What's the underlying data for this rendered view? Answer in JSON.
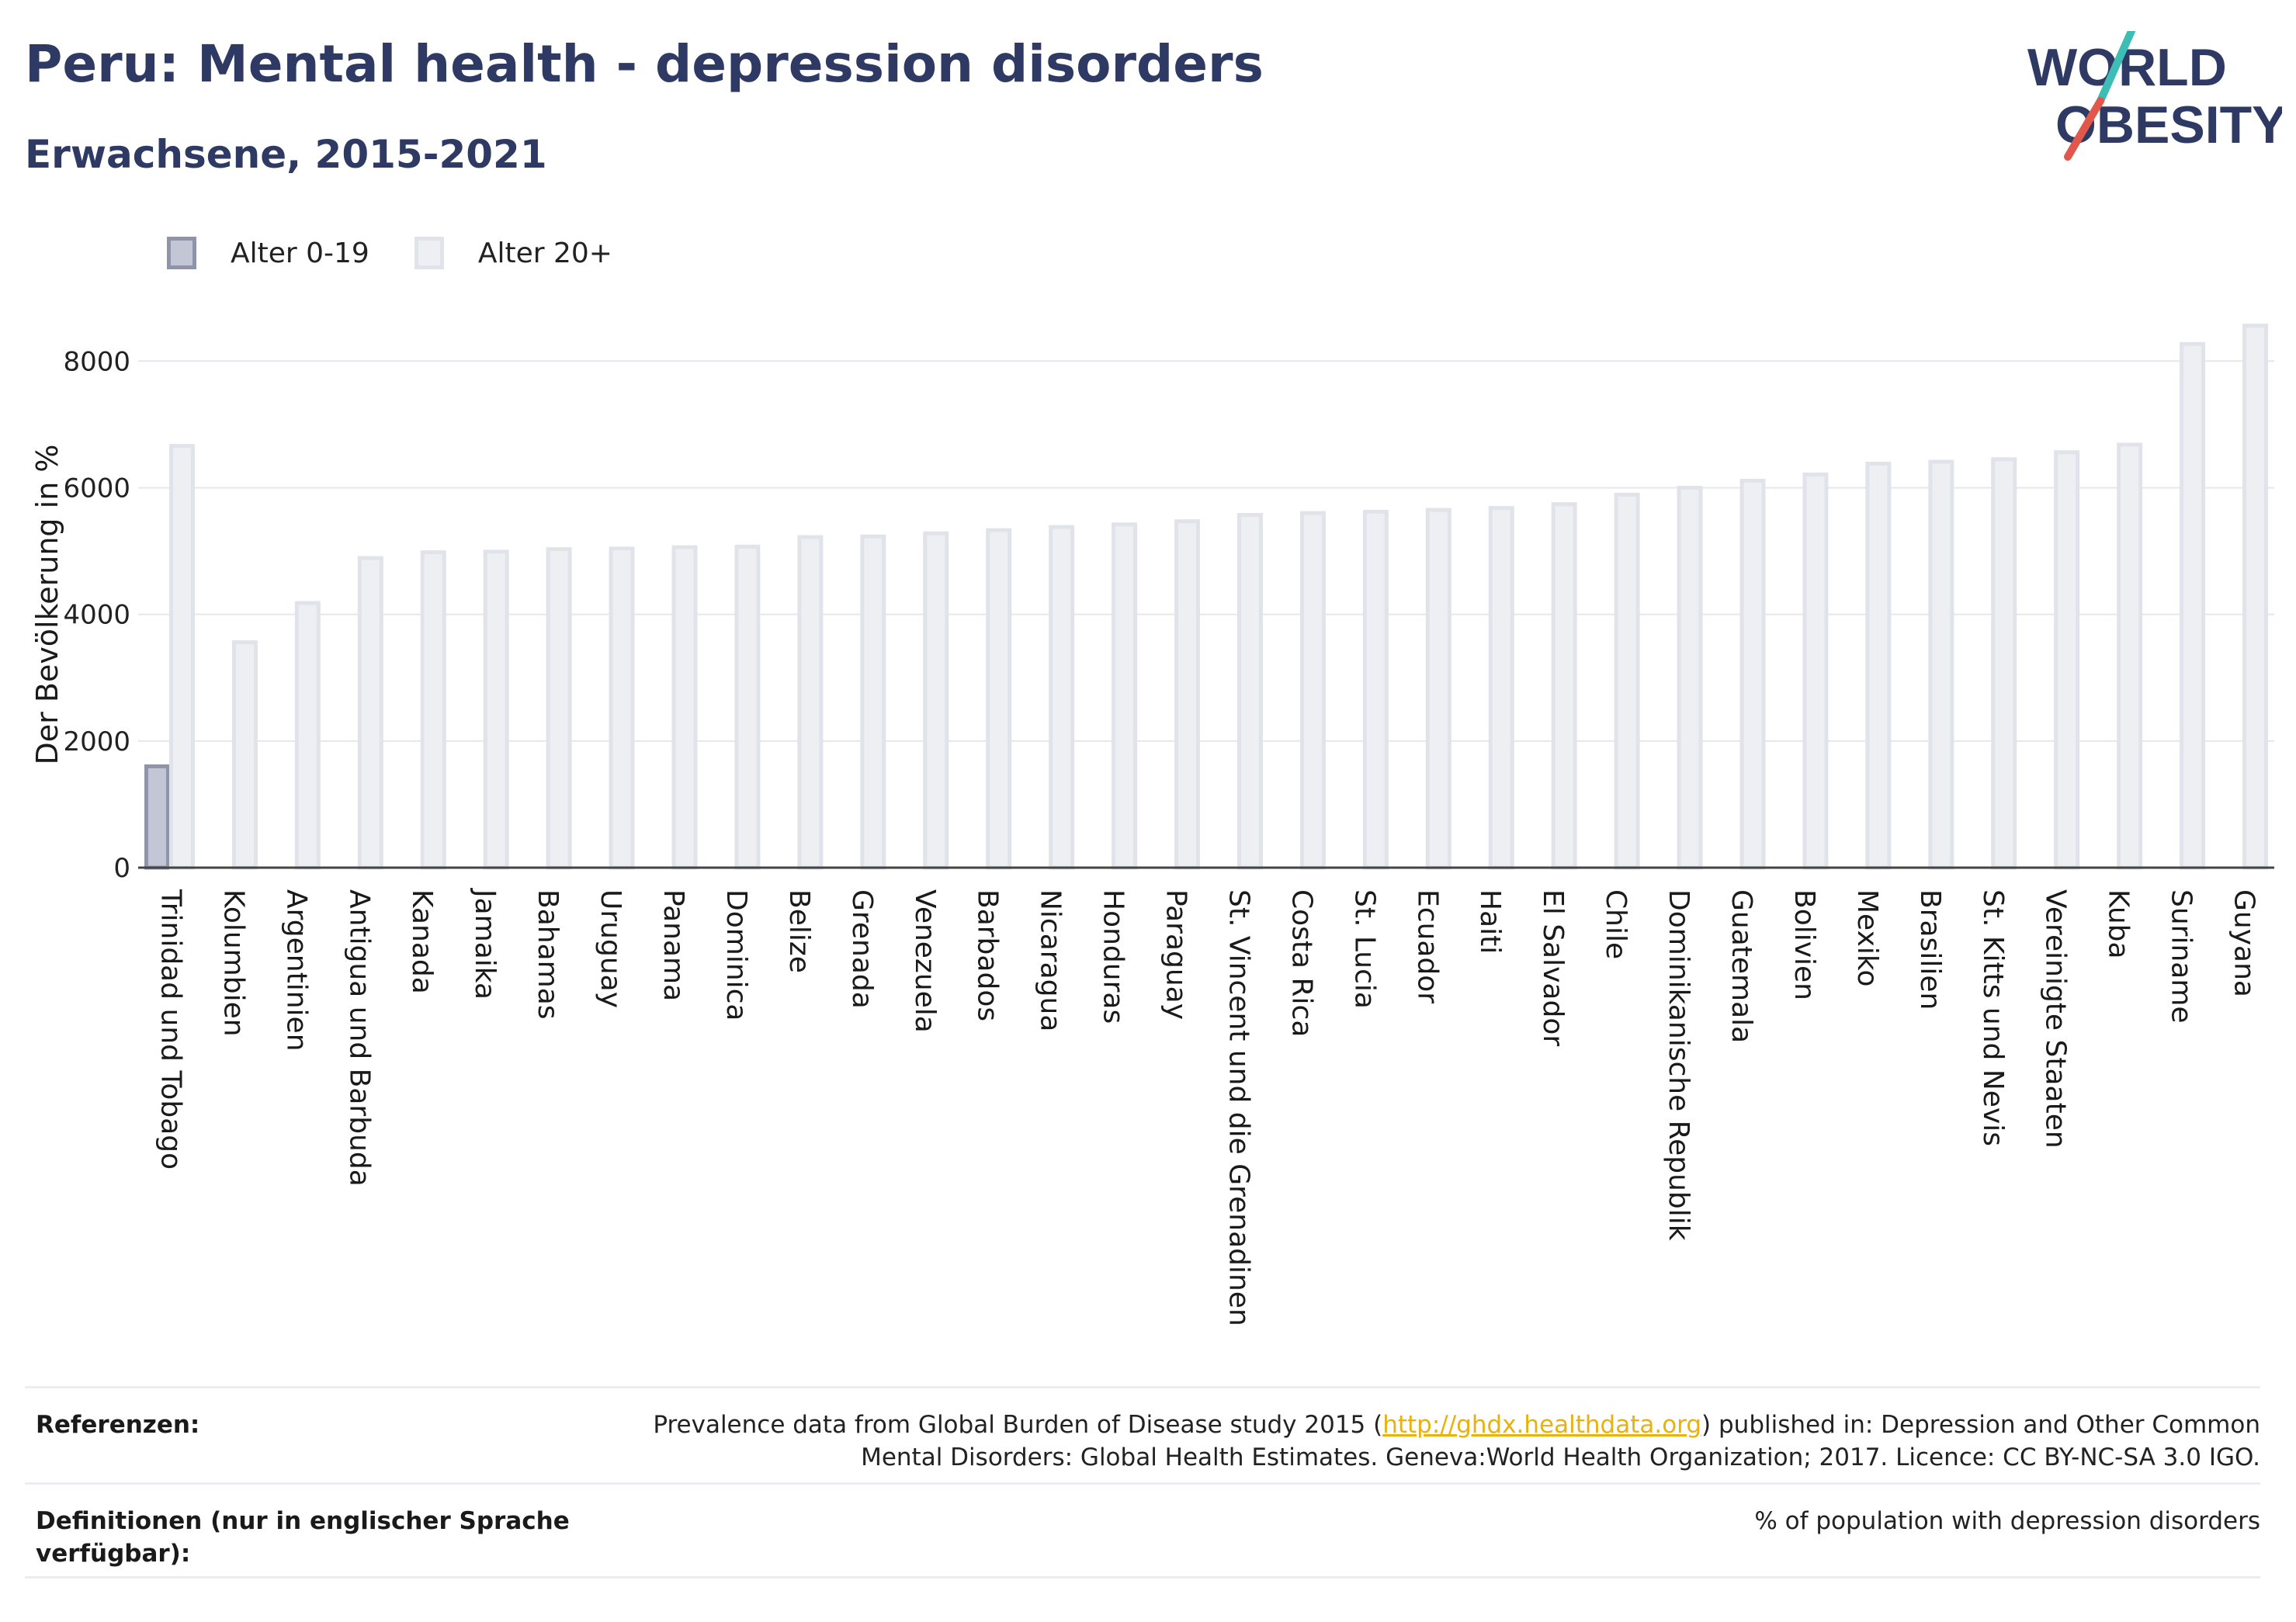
{
  "header": {
    "title": "Peru: Mental health - depression disorders",
    "subtitle": "Erwachsene, 2015-2021"
  },
  "logo": {
    "line1": "WORLD",
    "line2": "OBESITY",
    "colors": {
      "text": "#2e3a63",
      "slash_top": "#3dbdb5",
      "slash_bottom": "#e2574c"
    }
  },
  "legend": {
    "items": [
      {
        "label": "Alter 0-19",
        "color": "#c3c6d4"
      },
      {
        "label": "Alter 20+",
        "color": "#eeeff3"
      }
    ]
  },
  "chart_data": {
    "type": "bar",
    "ylabel": "Der Bevölkerung in %",
    "xlabel": "",
    "ylim": [
      0,
      8800
    ],
    "yticks": [
      0,
      2000,
      4000,
      6000,
      8000
    ],
    "grid": true,
    "legend_position": "top-left",
    "categories": [
      "Trinidad und Tobago",
      "Kolumbien",
      "Argentinien",
      "Antigua und Barbuda",
      "Kanada",
      "Jamaika",
      "Bahamas",
      "Uruguay",
      "Panama",
      "Dominica",
      "Belize",
      "Grenada",
      "Venezuela",
      "Barbados",
      "Nicaragua",
      "Honduras",
      "Paraguay",
      "St. Vincent und die Grenadinen",
      "Costa Rica",
      "St. Lucia",
      "Ecuador",
      "Haiti",
      "El Salvador",
      "Chile",
      "Dominikanische Republik",
      "Guatemala",
      "Bolivien",
      "Mexiko",
      "Brasilien",
      "St. Kitts und Nevis",
      "Vereinigte Staaten",
      "Kuba",
      "Suriname",
      "Guyana"
    ],
    "series": [
      {
        "name": "Alter 0-19",
        "values": [
          1600,
          null,
          null,
          null,
          null,
          null,
          null,
          null,
          null,
          null,
          null,
          null,
          null,
          null,
          null,
          null,
          null,
          null,
          null,
          null,
          null,
          null,
          null,
          null,
          null,
          null,
          null,
          null,
          null,
          null,
          null,
          null,
          null,
          null
        ],
        "fill": "#c3c6d4",
        "stroke": "#8f94aa"
      },
      {
        "name": "Alter 20+",
        "values": [
          6660,
          3560,
          4180,
          4890,
          4980,
          4990,
          5030,
          5040,
          5060,
          5070,
          5220,
          5230,
          5280,
          5330,
          5380,
          5420,
          5470,
          5570,
          5600,
          5620,
          5650,
          5680,
          5740,
          5890,
          6000,
          6110,
          6210,
          6380,
          6410,
          6450,
          6560,
          6680,
          8270,
          8560
        ],
        "fill": "#eeeff3",
        "stroke": "#e1e3ea"
      }
    ]
  },
  "references": {
    "label": "Referenzen:",
    "text_before": "Prevalence data from Global Burden of Disease study 2015 (",
    "link": "http://ghdx.healthdata.org",
    "text_after": ") published in: Depression and Other Common",
    "line2": "Mental Disorders: Global Health Estimates. Geneva:World Health Organization; 2017. Licence: CC BY-NC-SA 3.0 IGO."
  },
  "definitions": {
    "label_line1": "Definitionen (nur in englischer Sprache",
    "label_line2": "verfügbar):",
    "text": "% of population with depression disorders"
  }
}
